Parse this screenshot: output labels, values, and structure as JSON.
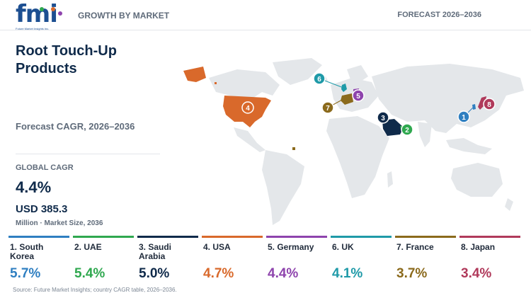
{
  "header": {
    "logo_text": "fmi",
    "logo_subtext": "Future Market Insights Inc.",
    "left_label": "GROWTH BY MARKET",
    "right_label": "FORECAST 2026–2036"
  },
  "summary": {
    "title": "Root Touch-Up Products",
    "subtitle": "Forecast CAGR, 2026–2036",
    "global_cagr_label": "GLOBAL CAGR",
    "global_cagr_value": "4.4%",
    "market_size_value": "USD 385.3",
    "market_size_label": "Million · Market Size, 2036"
  },
  "colors": {
    "south_korea": "#2f7fc1",
    "uae": "#2fa84f",
    "saudi_arabia": "#0f2a4a",
    "usa": "#d9692b",
    "germany": "#8e44ad",
    "uk": "#1f9aa8",
    "france": "#8b6a1c",
    "japan": "#b03a5b",
    "land": "#e4e7ea"
  },
  "markets": [
    {
      "rank": "1",
      "label": "1. South Korea",
      "cagr": "5.7%",
      "color": "#2f7fc1",
      "icon": "marker-1"
    },
    {
      "rank": "2",
      "label": "2. UAE",
      "cagr": "5.4%",
      "color": "#2fa84f",
      "icon": "marker-2"
    },
    {
      "rank": "3",
      "label": "3. Saudi Arabia",
      "cagr": "5.0%",
      "color": "#0f2a4a",
      "icon": "marker-3"
    },
    {
      "rank": "4",
      "label": "4. USA",
      "cagr": "4.7%",
      "color": "#d9692b",
      "icon": "marker-4"
    },
    {
      "rank": "5",
      "label": "5. Germany",
      "cagr": "4.4%",
      "color": "#8e44ad",
      "icon": "marker-5"
    },
    {
      "rank": "6",
      "label": "6. UK",
      "cagr": "4.1%",
      "color": "#1f9aa8",
      "icon": "marker-6"
    },
    {
      "rank": "7",
      "label": "7. France",
      "cagr": "3.7%",
      "color": "#8b6a1c",
      "icon": "marker-7"
    },
    {
      "rank": "8",
      "label": "8. Japan",
      "cagr": "3.4%",
      "color": "#b03a5b",
      "icon": "marker-8"
    }
  ],
  "source": "Source: Future Market Insights; country CAGR table, 2026–2036."
}
